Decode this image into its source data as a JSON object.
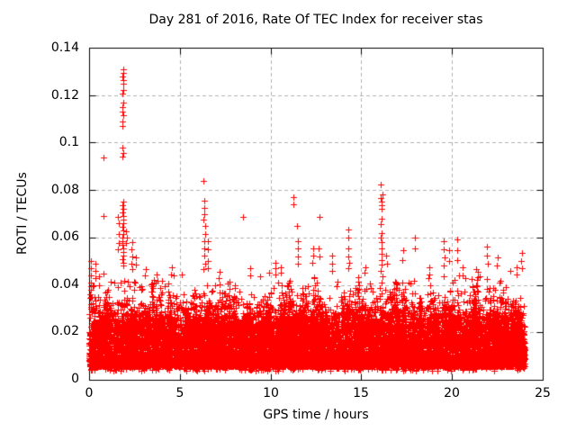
{
  "page": {
    "background": "#ffffff"
  },
  "chart_data": {
    "type": "scatter",
    "title": "Day 281 of 2016, Rate Of TEC Index for receiver stas",
    "xlabel": "GPS time / hours",
    "ylabel": "ROTI / TECUs",
    "xlim": [
      0,
      25
    ],
    "ylim": [
      0,
      0.14
    ],
    "xticks": {
      "values": [
        0,
        5,
        10,
        15,
        20,
        25
      ],
      "labels": [
        "0",
        "5",
        "10",
        "15",
        "20",
        "25"
      ]
    },
    "yticks": {
      "values": [
        0,
        0.02,
        0.04,
        0.06,
        0.08,
        0.1,
        0.12,
        0.14
      ],
      "labels": [
        "0",
        "0.02",
        "0.04",
        "0.06",
        "0.08",
        "0.1",
        "0.12",
        "0.14"
      ]
    },
    "grid": {
      "show": true,
      "color": "#b0b0b0",
      "dash": [
        4,
        3
      ]
    },
    "axis_color": "#000000",
    "marker": {
      "shape": "plus",
      "color": "#ff0000",
      "size": 7
    },
    "legend": {
      "show": false
    },
    "data_coverage_hours": [
      0,
      24
    ],
    "dense_band": {
      "seed": 42,
      "layers": [
        {
          "n": 8500,
          "min": 0.0055,
          "max": 0.023,
          "dist": "product"
        },
        {
          "n": 2600,
          "min": 0.015,
          "max": 0.033,
          "dist": "product"
        },
        {
          "n": 900,
          "min": 0.022,
          "max": 0.046,
          "dist": "product"
        },
        {
          "n": 350,
          "min": 0.0038,
          "max": 0.0068,
          "dist": "uniform"
        },
        {
          "n": 500,
          "min": 0.008,
          "max": 0.02,
          "dist": "uniform"
        }
      ]
    },
    "cluster_texture": {
      "seed": 7,
      "count": 240,
      "peak_min": 0.026,
      "peak_max": 0.047,
      "pts_min": 5,
      "pts_max": 16,
      "spread": 0.09
    },
    "spikes": [
      {
        "t": 0.1,
        "values": [
          0.05,
          0.047,
          0.044,
          0.041,
          0.038,
          0.035,
          0.032,
          0.03
        ]
      },
      {
        "t": 0.33,
        "values": [
          0.049,
          0.046,
          0.043
        ]
      },
      {
        "t": 0.55,
        "values": [
          0.0435,
          0.04
        ]
      },
      {
        "t": 0.78,
        "values": [
          0.069
        ]
      },
      {
        "t": 0.82,
        "values": [
          0.0937
        ]
      },
      {
        "t": 1.62,
        "values": [
          0.0685,
          0.066,
          0.0615,
          0.0575,
          0.055
        ]
      },
      {
        "t": 1.86,
        "spread": 0.1,
        "values": [
          0.131,
          0.1295,
          0.128,
          0.1265,
          0.125,
          0.122,
          0.1205,
          0.117,
          0.115,
          0.113,
          0.1115,
          0.109,
          0.107,
          0.098,
          0.0955,
          0.094,
          0.075,
          0.0735,
          0.072,
          0.0705,
          0.069,
          0.0675,
          0.066,
          0.0645,
          0.063,
          0.0615,
          0.06,
          0.0585,
          0.057,
          0.0555,
          0.054,
          0.0525,
          0.051,
          0.0495,
          0.048
        ]
      },
      {
        "t": 2.05,
        "values": [
          0.0625,
          0.06,
          0.0575
        ]
      },
      {
        "t": 2.35,
        "values": [
          0.058,
          0.055,
          0.052,
          0.049,
          0.0465
        ]
      },
      {
        "t": 2.6,
        "values": [
          0.0515,
          0.0485
        ]
      },
      {
        "t": 3.1,
        "values": [
          0.0465,
          0.044
        ]
      },
      {
        "t": 3.75,
        "values": [
          0.0445
        ]
      },
      {
        "t": 4.55,
        "values": [
          0.0475,
          0.0445
        ]
      },
      {
        "t": 5.1,
        "values": [
          0.0445
        ]
      },
      {
        "t": 6.35,
        "spread": 0.08,
        "values": [
          0.0838,
          0.0755,
          0.0725,
          0.07,
          0.0675,
          0.065,
          0.0615,
          0.0585,
          0.0555,
          0.0525,
          0.049,
          0.0465
        ]
      },
      {
        "t": 6.55,
        "values": [
          0.0585,
          0.055,
          0.05,
          0.047
        ]
      },
      {
        "t": 7.15,
        "values": [
          0.0455,
          0.043
        ]
      },
      {
        "t": 8.5,
        "values": [
          0.0685
        ]
      },
      {
        "t": 8.9,
        "values": [
          0.047,
          0.044
        ]
      },
      {
        "t": 9.4,
        "values": [
          0.0435
        ]
      },
      {
        "t": 10.25,
        "values": [
          0.0495,
          0.047,
          0.0445
        ]
      },
      {
        "t": 10.55,
        "values": [
          0.0475,
          0.045
        ]
      },
      {
        "t": 11.25,
        "values": [
          0.077,
          0.074
        ]
      },
      {
        "t": 11.5,
        "values": [
          0.065,
          0.0585,
          0.0555,
          0.052,
          0.049
        ]
      },
      {
        "t": 12.35,
        "values": [
          0.0555,
          0.0525,
          0.0495
        ]
      },
      {
        "t": 12.68,
        "values": [
          0.0688,
          0.0555,
          0.052
        ]
      },
      {
        "t": 13.4,
        "values": [
          0.0525,
          0.049,
          0.046
        ]
      },
      {
        "t": 14.3,
        "values": [
          0.0635,
          0.06,
          0.0555,
          0.052,
          0.0495,
          0.047
        ]
      },
      {
        "t": 15.2,
        "values": [
          0.0475,
          0.045
        ]
      },
      {
        "t": 16.1,
        "spread": 0.1,
        "values": [
          0.0823,
          0.078,
          0.0765,
          0.075,
          0.0735,
          0.072,
          0.068,
          0.0655,
          0.062,
          0.06,
          0.058,
          0.0555,
          0.053,
          0.0505,
          0.0485,
          0.046
        ]
      },
      {
        "t": 16.4,
        "values": [
          0.0525,
          0.049
        ]
      },
      {
        "t": 17.3,
        "values": [
          0.0545,
          0.0505
        ]
      },
      {
        "t": 17.95,
        "values": [
          0.06,
          0.0555
        ]
      },
      {
        "t": 18.75,
        "values": [
          0.0475,
          0.0445
        ]
      },
      {
        "t": 19.55,
        "values": [
          0.0585,
          0.055,
          0.0515,
          0.048
        ]
      },
      {
        "t": 19.85,
        "values": [
          0.0545,
          0.05
        ]
      },
      {
        "t": 20.25,
        "values": [
          0.059,
          0.0545,
          0.0505
        ]
      },
      {
        "t": 20.6,
        "values": [
          0.0475,
          0.044
        ]
      },
      {
        "t": 21.35,
        "values": [
          0.0465
        ]
      },
      {
        "t": 21.95,
        "values": [
          0.056,
          0.0525,
          0.049
        ]
      },
      {
        "t": 22.5,
        "values": [
          0.0515,
          0.048
        ]
      },
      {
        "t": 23.2,
        "values": [
          0.046
        ]
      },
      {
        "t": 23.55,
        "values": [
          0.0475,
          0.0445
        ]
      },
      {
        "t": 23.85,
        "values": [
          0.0535,
          0.05,
          0.047
        ]
      }
    ]
  }
}
